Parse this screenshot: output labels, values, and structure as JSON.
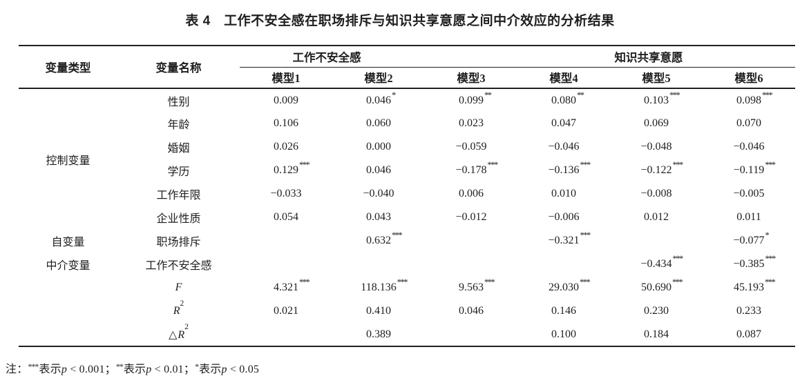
{
  "page": {
    "title": "表 4　工作不安全感在职场排斥与知识共享意愿之间中介效应的分析结果"
  },
  "colors": {
    "text": "#1e1e1e",
    "rule": "#1e1e1e",
    "background": "#ffffff"
  },
  "table": {
    "header": {
      "var_type": "变量类型",
      "var_name": "变量名称",
      "groups": [
        {
          "label": "工作不安全感",
          "span": 2
        },
        {
          "label": "知识共享意愿",
          "span": 4
        }
      ],
      "models": [
        "模型1",
        "模型2",
        "模型3",
        "模型4",
        "模型5",
        "模型6"
      ]
    },
    "groups": [
      {
        "type_label": "控制变量",
        "rows": [
          {
            "name": "性别",
            "cells": [
              [
                "0.009",
                ""
              ],
              [
                "0.046",
                "*"
              ],
              [
                "0.099",
                "**"
              ],
              [
                "0.080",
                "**"
              ],
              [
                "0.103",
                "***"
              ],
              [
                "0.098",
                "***"
              ]
            ]
          },
          {
            "name": "年龄",
            "cells": [
              [
                "0.106",
                ""
              ],
              [
                "0.060",
                ""
              ],
              [
                "0.023",
                ""
              ],
              [
                "0.047",
                ""
              ],
              [
                "0.069",
                ""
              ],
              [
                "0.070",
                ""
              ]
            ]
          },
          {
            "name": "婚姻",
            "cells": [
              [
                "0.026",
                ""
              ],
              [
                "0.000",
                ""
              ],
              [
                "−0.059",
                ""
              ],
              [
                "−0.046",
                ""
              ],
              [
                "−0.048",
                ""
              ],
              [
                "−0.046",
                ""
              ]
            ]
          },
          {
            "name": "学历",
            "cells": [
              [
                "0.129",
                "***"
              ],
              [
                "0.046",
                ""
              ],
              [
                "−0.178",
                "***"
              ],
              [
                "−0.136",
                "***"
              ],
              [
                "−0.122",
                "***"
              ],
              [
                "−0.119",
                "***"
              ]
            ]
          },
          {
            "name": "工作年限",
            "cells": [
              [
                "−0.033",
                ""
              ],
              [
                "−0.040",
                ""
              ],
              [
                "0.006",
                ""
              ],
              [
                "0.010",
                ""
              ],
              [
                "−0.008",
                ""
              ],
              [
                "−0.005",
                ""
              ]
            ]
          },
          {
            "name": "企业性质",
            "cells": [
              [
                "0.054",
                ""
              ],
              [
                "0.043",
                ""
              ],
              [
                "−0.012",
                ""
              ],
              [
                "−0.006",
                ""
              ],
              [
                "0.012",
                ""
              ],
              [
                "0.011",
                ""
              ]
            ]
          }
        ]
      },
      {
        "type_label": "自变量",
        "rows": [
          {
            "name": "职场排斥",
            "cells": [
              [
                "",
                ""
              ],
              [
                "0.632",
                "***"
              ],
              [
                "",
                ""
              ],
              [
                "−0.321",
                "***"
              ],
              [
                "",
                ""
              ],
              [
                "−0.077",
                "*"
              ]
            ]
          }
        ]
      },
      {
        "type_label": "中介变量",
        "rows": [
          {
            "name": "工作不安全感",
            "cells": [
              [
                "",
                ""
              ],
              [
                "",
                ""
              ],
              [
                "",
                ""
              ],
              [
                "",
                ""
              ],
              [
                "−0.434",
                "***"
              ],
              [
                "−0.385",
                "***"
              ]
            ]
          }
        ]
      },
      {
        "type_label": "",
        "rows": [
          {
            "name": "F",
            "math": true,
            "cells": [
              [
                "4.321",
                "***"
              ],
              [
                "118.136",
                "***"
              ],
              [
                "9.563",
                "***"
              ],
              [
                "29.030",
                "***"
              ],
              [
                "50.690",
                "***"
              ],
              [
                "45.193",
                "***"
              ]
            ]
          },
          {
            "name": "R",
            "sup": "2",
            "math": true,
            "cells": [
              [
                "0.021",
                ""
              ],
              [
                "0.410",
                ""
              ],
              [
                "0.046",
                ""
              ],
              [
                "0.146",
                ""
              ],
              [
                "0.230",
                ""
              ],
              [
                "0.233",
                ""
              ]
            ]
          },
          {
            "name": "R",
            "prefix": "△",
            "sup": "2",
            "math": true,
            "cells": [
              [
                "",
                ""
              ],
              [
                "0.389",
                ""
              ],
              [
                "",
                ""
              ],
              [
                "0.100",
                ""
              ],
              [
                "0.184",
                ""
              ],
              [
                "0.087",
                ""
              ]
            ]
          }
        ]
      }
    ]
  },
  "note": {
    "segments": [
      {
        "t": "注："
      },
      {
        "t": "***",
        "sup": true
      },
      {
        "t": "表示"
      },
      {
        "t": "p",
        "italic": true
      },
      {
        "t": " < 0.001；"
      },
      {
        "t": "**",
        "sup": true
      },
      {
        "t": "表示"
      },
      {
        "t": "p",
        "italic": true
      },
      {
        "t": " < 0.01；"
      },
      {
        "t": "*",
        "sup": true
      },
      {
        "t": "表示"
      },
      {
        "t": "p",
        "italic": true
      },
      {
        "t": " < 0.05"
      }
    ]
  }
}
